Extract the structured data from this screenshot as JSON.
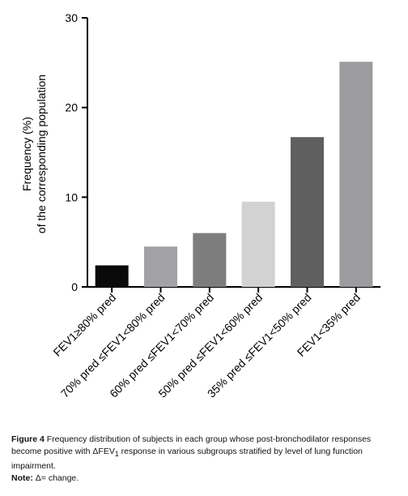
{
  "chart_data": {
    "type": "bar",
    "ylabel_line1": "Frequency (%)",
    "ylabel_line2": "of the corresponding population",
    "ylim": [
      0,
      30
    ],
    "yticks": [
      "0",
      "10",
      "20",
      "30"
    ],
    "categories": [
      "FEV1≥80% pred",
      "70% pred ≤FEV1<80% pred",
      "60% pred ≤FEV1<70% pred",
      "50% pred ≤FEV1<60% pred",
      "35% pred ≤FEV1<50% pred",
      "FEV1<35% pred"
    ],
    "values": [
      2.4,
      4.5,
      6.0,
      9.5,
      16.7,
      25.1
    ],
    "colors": [
      "#0a0a0a",
      "#a2a2a4",
      "#7d7d7d",
      "#d2d2d2",
      "#5f5f60",
      "#9c9c9e"
    ],
    "grid": false,
    "legend": "none"
  },
  "caption": {
    "figure_label": "Figure 4",
    "text_before_delta": " Frequency distribution of subjects in each group whose post-bronchodilator responses become positive with ",
    "delta_symbol": "ΔFEV",
    "delta_subscript": "1",
    "text_after_delta": " response in various subgroups stratified by level of lung function impairment.",
    "note_label": "Note:",
    "note_text": " Δ= change."
  }
}
